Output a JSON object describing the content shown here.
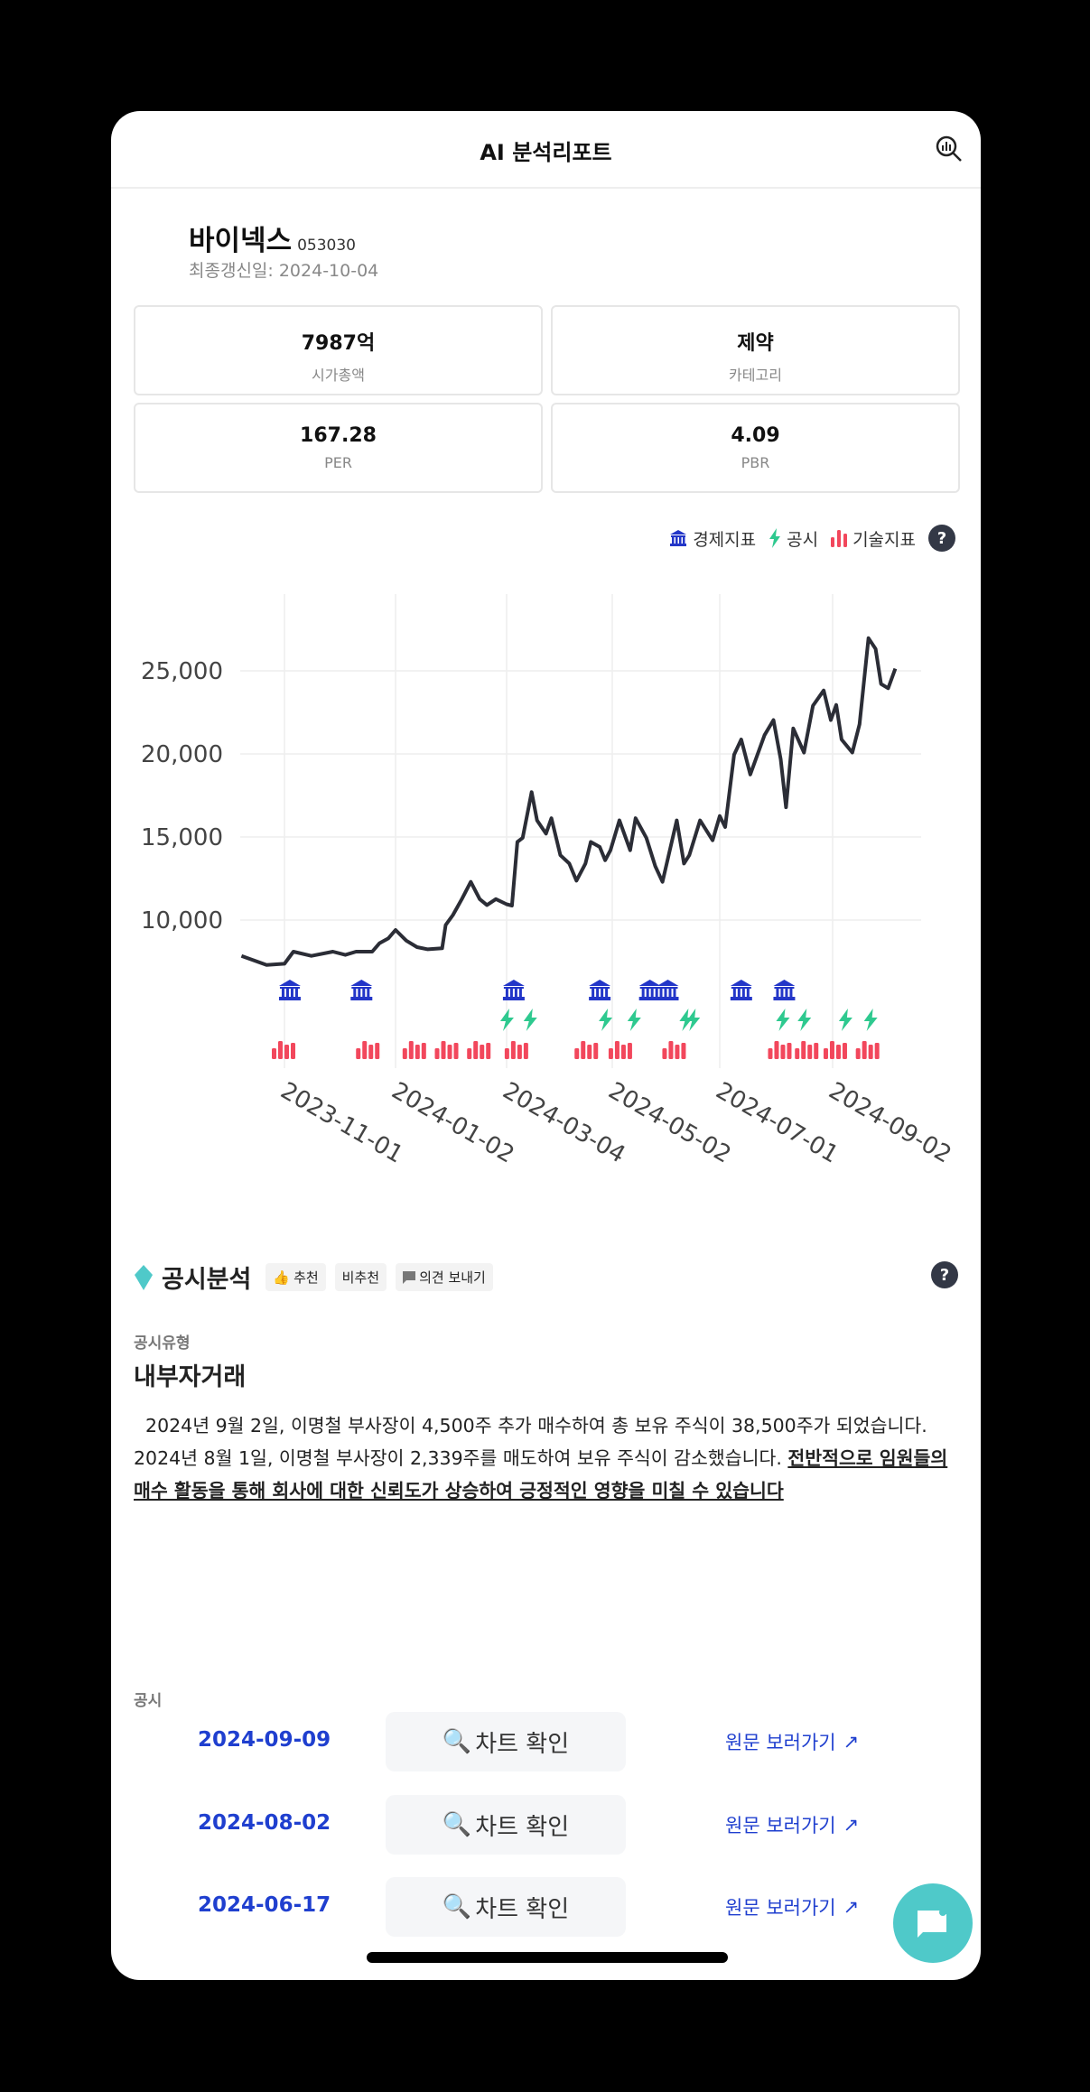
{
  "header": {
    "title": "AI 분석리포트",
    "icon": "chart-search-icon"
  },
  "company": {
    "name": "바이넥스",
    "code": "053030",
    "updated": "최종갱신일: 2024-10-04"
  },
  "metrics": [
    {
      "value": "7987억",
      "label": "시가총액"
    },
    {
      "value": "제약",
      "label": "카테고리"
    },
    {
      "value": "167.28",
      "label": "PER"
    },
    {
      "value": "4.09",
      "label": "PBR"
    }
  ],
  "legend": {
    "items": [
      {
        "label": "경제지표",
        "icon": "bank-icon",
        "color": "#2336c8"
      },
      {
        "label": "공시",
        "icon": "bolt-icon",
        "color": "#2ec98f"
      },
      {
        "label": "기술지표",
        "icon": "bar-chart-icon",
        "color": "#f2475c"
      }
    ],
    "help": "?"
  },
  "chart_data": {
    "type": "line",
    "title": "",
    "xlabel": "",
    "ylabel": "",
    "yticks": [
      "10,000",
      "15,000",
      "20,000",
      "25,000"
    ],
    "ytick_values": [
      10000,
      15000,
      20000,
      25000
    ],
    "xticks": [
      "2023-11-01",
      "2024-01-02",
      "2024-03-04",
      "2024-05-02",
      "2024-07-01",
      "2024-09-02"
    ],
    "grid": true,
    "line_color": "#2b2d36",
    "series": [
      {
        "points": [
          [
            "2023-10-08",
            7840
          ],
          [
            "2023-10-22",
            7300
          ],
          [
            "2023-11-01",
            7370
          ],
          [
            "2023-11-06",
            8100
          ],
          [
            "2023-11-16",
            7840
          ],
          [
            "2023-11-28",
            8100
          ],
          [
            "2023-12-05",
            7900
          ],
          [
            "2023-12-11",
            8100
          ],
          [
            "2023-12-20",
            8100
          ],
          [
            "2023-12-24",
            8600
          ],
          [
            "2023-12-29",
            8900
          ],
          [
            "2024-01-02",
            9400
          ],
          [
            "2024-01-08",
            8760
          ],
          [
            "2024-01-14",
            8370
          ],
          [
            "2024-01-20",
            8240
          ],
          [
            "2024-01-28",
            8300
          ],
          [
            "2024-01-30",
            9700
          ],
          [
            "2024-02-03",
            10300
          ],
          [
            "2024-02-08",
            11260
          ],
          [
            "2024-02-13",
            12300
          ],
          [
            "2024-02-18",
            11260
          ],
          [
            "2024-02-22",
            10900
          ],
          [
            "2024-02-27",
            11260
          ],
          [
            "2024-03-04",
            10950
          ],
          [
            "2024-03-07",
            10870
          ],
          [
            "2024-03-10",
            14700
          ],
          [
            "2024-03-13",
            14950
          ],
          [
            "2024-03-18",
            17700
          ],
          [
            "2024-03-21",
            16000
          ],
          [
            "2024-03-26",
            15200
          ],
          [
            "2024-03-29",
            16130
          ],
          [
            "2024-04-03",
            13900
          ],
          [
            "2024-04-08",
            13400
          ],
          [
            "2024-04-12",
            12370
          ],
          [
            "2024-04-17",
            13400
          ],
          [
            "2024-04-20",
            14700
          ],
          [
            "2024-04-25",
            14400
          ],
          [
            "2024-04-28",
            13600
          ],
          [
            "2024-05-01",
            14200
          ],
          [
            "2024-05-06",
            16000
          ],
          [
            "2024-05-12",
            14200
          ],
          [
            "2024-05-15",
            16130
          ],
          [
            "2024-05-21",
            14950
          ],
          [
            "2024-05-26",
            13240
          ],
          [
            "2024-05-30",
            12300
          ],
          [
            "2024-06-07",
            16000
          ],
          [
            "2024-06-11",
            13400
          ],
          [
            "2024-06-14",
            13900
          ],
          [
            "2024-06-20",
            16000
          ],
          [
            "2024-06-27",
            14800
          ],
          [
            "2024-07-01",
            16260
          ],
          [
            "2024-07-04",
            15600
          ],
          [
            "2024-07-09",
            19950
          ],
          [
            "2024-07-13",
            20870
          ],
          [
            "2024-07-18",
            18760
          ],
          [
            "2024-07-26",
            21130
          ],
          [
            "2024-07-31",
            22040
          ],
          [
            "2024-08-04",
            19680
          ],
          [
            "2024-08-07",
            16790
          ],
          [
            "2024-08-11",
            21530
          ],
          [
            "2024-08-17",
            20080
          ],
          [
            "2024-08-22",
            22900
          ],
          [
            "2024-08-28",
            23820
          ],
          [
            "2024-09-01",
            22040
          ],
          [
            "2024-09-04",
            22950
          ],
          [
            "2024-09-07",
            20870
          ],
          [
            "2024-09-13",
            20080
          ],
          [
            "2024-09-17",
            21790
          ],
          [
            "2024-09-22",
            26970
          ],
          [
            "2024-09-26",
            26320
          ],
          [
            "2024-09-29",
            24210
          ],
          [
            "2024-10-03",
            23950
          ],
          [
            "2024-10-07",
            25130
          ]
        ]
      }
    ],
    "markers": {
      "economic": [
        "2023-11-04",
        "2023-12-14",
        "2024-03-08",
        "2024-04-25",
        "2024-05-23",
        "2024-06-02",
        "2024-07-13",
        "2024-08-06"
      ],
      "disclosure": [
        "2024-03-04",
        "2024-03-17",
        "2024-04-28",
        "2024-05-14",
        "2024-06-12",
        "2024-06-16",
        "2024-08-05",
        "2024-08-17",
        "2024-09-09",
        "2024-09-23"
      ],
      "technical": [
        "2023-11-01",
        "2023-12-18",
        "2024-01-13",
        "2024-01-31",
        "2024-02-18",
        "2024-03-10",
        "2024-04-18",
        "2024-05-07",
        "2024-06-06",
        "2024-08-04",
        "2024-08-19",
        "2024-09-04",
        "2024-09-22"
      ]
    }
  },
  "analysis": {
    "title": "공시분석",
    "recommend": "추천",
    "not_recommend": "비추천",
    "feedback": "의견 보내기",
    "help": "?",
    "type_label": "공시유형",
    "type_value": "내부자거래",
    "text": "  2024년 9월 2일, 이명철 부사장이 4,500주 추가 매수하여 총 보유 주식이 38,500주가 되었습니다. 2024년 8월 1일, 이명철 부사장이 2,339주를 매도하여 보유 주식이 감소했습니다. ",
    "text_emph": "전반적으로 임원들의 매수 활동을 통해 회사에 대한 신뢰도가 상승하여 긍정적인 영향을 미칠 수 있습니다"
  },
  "disclosures": {
    "label": "공시",
    "rows": [
      {
        "date": "2024-09-09",
        "button": "차트 확인",
        "link": "원문 보러가기"
      },
      {
        "date": "2024-08-02",
        "button": "차트 확인",
        "link": "원문 보러가기"
      },
      {
        "date": "2024-06-17",
        "button": "차트 확인",
        "link": "원문 보러가기"
      }
    ]
  }
}
